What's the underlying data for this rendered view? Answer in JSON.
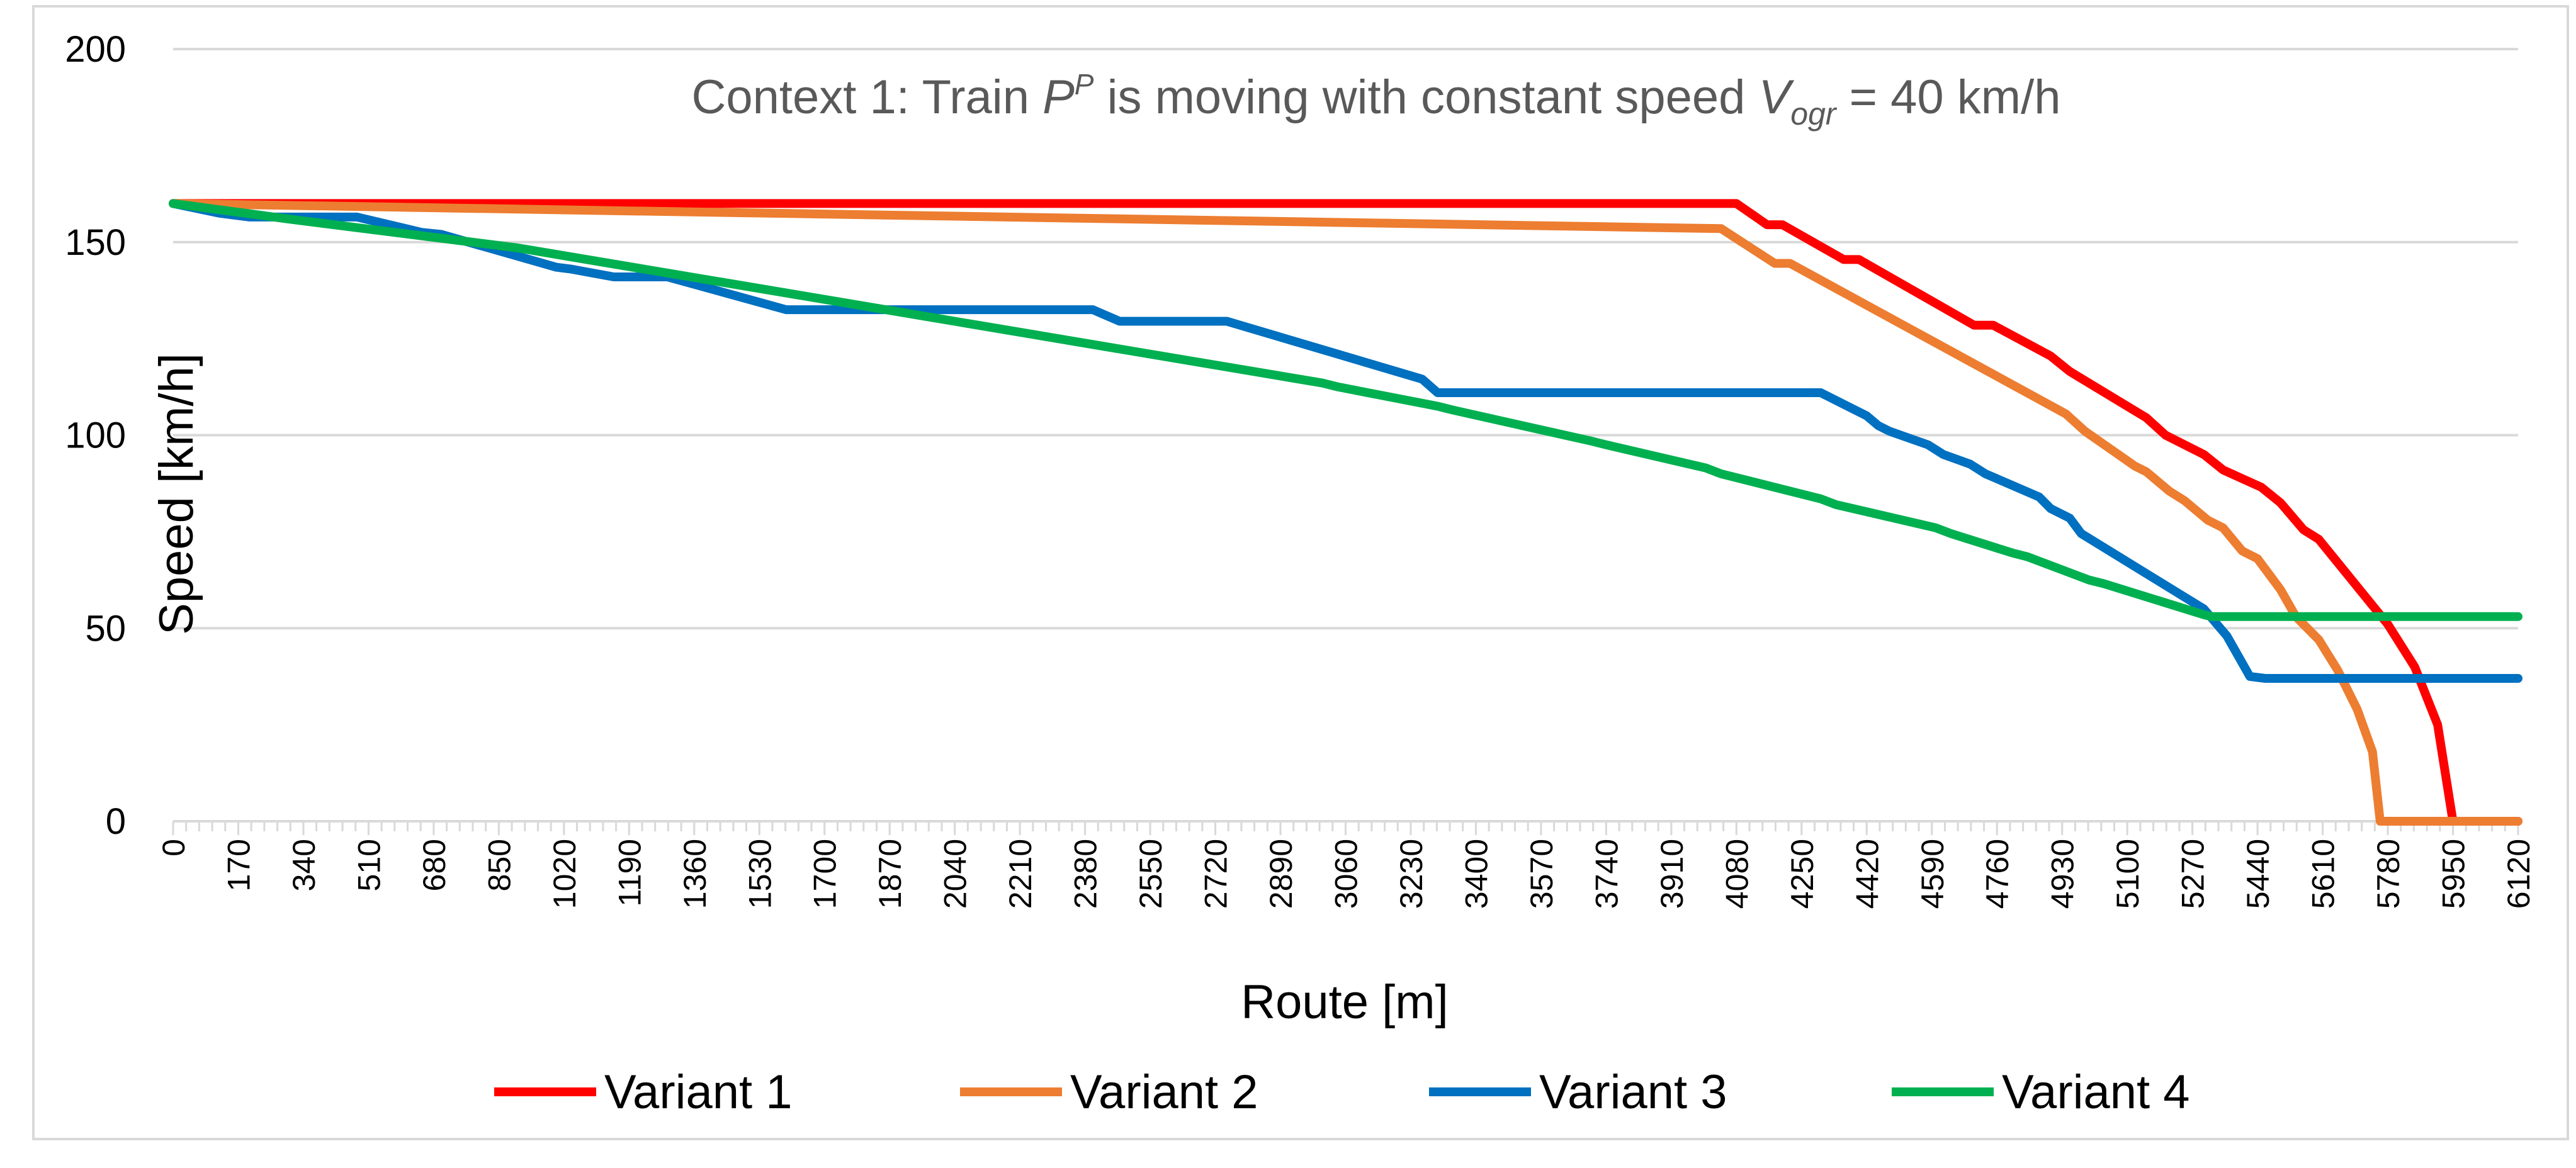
{
  "chart_data": {
    "type": "line",
    "title": {
      "prefix": "Context 1: Train ",
      "P": "P",
      "P_sup": "P",
      "middle": " is moving with constant speed ",
      "V": "V",
      "V_sub": "ogr",
      "suffix": " = 40 km/h"
    },
    "xlabel": "Route [m]",
    "ylabel": "Speed [km/h]",
    "xlim": [
      0,
      6120
    ],
    "ylim": [
      0,
      200
    ],
    "yticks": [
      "0",
      "50",
      "100",
      "150",
      "200"
    ],
    "xticks": [
      "0",
      "170",
      "340",
      "510",
      "680",
      "850",
      "1020",
      "1190",
      "1360",
      "1530",
      "1700",
      "1870",
      "2040",
      "2210",
      "2380",
      "2550",
      "2720",
      "2890",
      "3060",
      "3230",
      "3400",
      "3570",
      "3740",
      "3910",
      "4080",
      "4250",
      "4420",
      "4590",
      "4760",
      "4930",
      "5100",
      "5270",
      "5440",
      "5610",
      "5780",
      "5950",
      "6120"
    ],
    "legend_position": "bottom",
    "series": [
      {
        "name": "Variant 1",
        "color": "#ff0000",
        "x": [
          0,
          4080,
          4160,
          4200,
          4360,
          4400,
          4700,
          4750,
          4900,
          4950,
          5150,
          5200,
          5300,
          5350,
          5450,
          5500,
          5560,
          5600,
          5780,
          5850,
          5910,
          5950,
          6120
        ],
        "y": [
          160,
          160,
          154.5,
          154.5,
          145.5,
          145.5,
          128.5,
          128.5,
          120.5,
          116.5,
          104.5,
          100,
          95,
          91,
          86.5,
          82.5,
          75.5,
          73,
          51,
          40,
          25,
          0,
          0
        ]
      },
      {
        "name": "Variant 2",
        "color": "#ed7d31",
        "x": [
          0,
          4040,
          4180,
          4220,
          4940,
          4990,
          5120,
          5150,
          5210,
          5250,
          5310,
          5350,
          5400,
          5440,
          5500,
          5540,
          5600,
          5650,
          5700,
          5740,
          5760,
          5780,
          6120
        ],
        "y": [
          160,
          153.5,
          144.5,
          144.5,
          105.5,
          101,
          92,
          90.5,
          85.5,
          83,
          78,
          76,
          70,
          68,
          60,
          53,
          47,
          39,
          29,
          18,
          0,
          0,
          0
        ]
      },
      {
        "name": "Variant 3",
        "color": "#0070c0",
        "x": [
          0,
          120,
          200,
          480,
          650,
          700,
          1000,
          1040,
          1150,
          1290,
          1600,
          2400,
          2470,
          2750,
          3260,
          3300,
          4300,
          4420,
          4450,
          4480,
          4580,
          4620,
          4690,
          4730,
          4870,
          4900,
          4950,
          4980,
          5300,
          5360,
          5420,
          5460,
          6120
        ],
        "y": [
          160,
          157.5,
          156.5,
          156.5,
          152.5,
          152,
          143.5,
          143,
          141,
          141,
          132.5,
          132.5,
          129.5,
          129.5,
          114.5,
          111,
          111,
          105,
          102.5,
          101,
          97.5,
          95,
          92.5,
          90,
          84,
          81,
          78.5,
          74.5,
          55,
          48,
          37.5,
          37,
          37
        ]
      },
      {
        "name": "Variant 4",
        "color": "#00b050",
        "x": [
          0,
          300,
          900,
          1500,
          2100,
          2700,
          3000,
          3040,
          3300,
          3340,
          3700,
          3740,
          4000,
          4040,
          4300,
          4340,
          4600,
          4640,
          4800,
          4840,
          5000,
          5040,
          5300,
          5320,
          6120
        ],
        "y": [
          160,
          156,
          148.5,
          138.5,
          128.5,
          118.5,
          113.5,
          112.5,
          107.5,
          106.5,
          98.5,
          97.5,
          91.5,
          90,
          83.5,
          82,
          76,
          74.5,
          69.5,
          68.5,
          62.5,
          61.5,
          53.5,
          53,
          53
        ]
      }
    ]
  }
}
